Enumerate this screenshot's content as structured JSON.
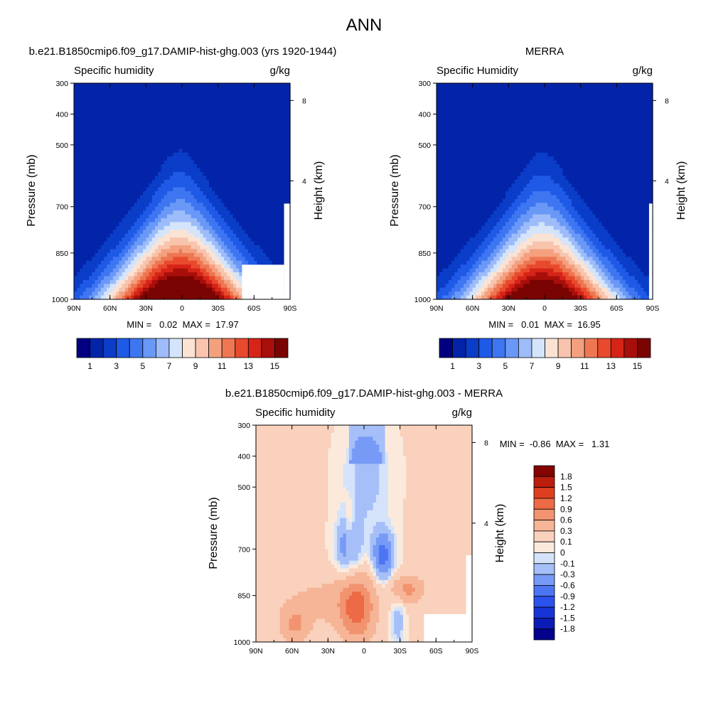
{
  "page_title": "ANN",
  "colors": {
    "seq_levels": [
      "#000080",
      "#0324a8",
      "#0a3dc8",
      "#1f5ae6",
      "#3e76f2",
      "#6a98f7",
      "#9dbcf9",
      "#d4e4fb",
      "#fbe3d4",
      "#f8c4ad",
      "#f4a07f",
      "#ee7752",
      "#e84a2d",
      "#d62418",
      "#a80f0a",
      "#7a0403"
    ],
    "diff_levels": [
      "#04028d",
      "#0b1cb5",
      "#1735d6",
      "#2b52ee",
      "#4c74f3",
      "#779af6",
      "#a6bff8",
      "#d4e3fa",
      "#fbeadc",
      "#f9d1bc",
      "#f6b596",
      "#f29370",
      "#ec6a45",
      "#de3f1f",
      "#bb1e0c",
      "#830401"
    ]
  },
  "chart_data": [
    {
      "type": "contour",
      "panel_title": "b.e21.B1850cmip6.f09_g17.DAMIP-hist-ghg.003 (yrs 1920-1944)",
      "left_label": "Specific humidity",
      "units": "g/kg",
      "ylabel": "Pressure (mb)",
      "y2label": "Height (km)",
      "x_ticks": [
        "90N",
        "60N",
        "30N",
        "0",
        "30S",
        "60S",
        "90S"
      ],
      "y_ticks": [
        300,
        400,
        500,
        700,
        850,
        1000
      ],
      "y2_ticks": [
        8,
        4
      ],
      "ylim": [
        1000,
        300
      ],
      "min_text": "MIN =   0.02  MAX =  17.97",
      "min": 0.02,
      "max": 17.97,
      "levels": [
        0,
        1,
        2,
        3,
        4,
        5,
        6,
        7,
        8,
        9,
        10,
        11,
        12,
        13,
        14,
        15,
        16
      ],
      "colorbar_labels": [
        "1",
        "3",
        "5",
        "7",
        "9",
        "11",
        "13",
        "15"
      ]
    },
    {
      "type": "contour",
      "panel_title": "MERRA",
      "left_label": "Specific Humidity",
      "units": "g/kg",
      "ylabel": "Pressure (mb)",
      "y2label": "Height (km)",
      "x_ticks": [
        "90N",
        "60N",
        "30N",
        "0",
        "30S",
        "60S",
        "90S"
      ],
      "y_ticks": [
        300,
        400,
        500,
        700,
        850,
        1000
      ],
      "y2_ticks": [
        8,
        4
      ],
      "ylim": [
        1000,
        300
      ],
      "min_text": "MIN =   0.01  MAX =  16.95",
      "min": 0.01,
      "max": 16.95,
      "levels": [
        0,
        1,
        2,
        3,
        4,
        5,
        6,
        7,
        8,
        9,
        10,
        11,
        12,
        13,
        14,
        15,
        16
      ],
      "colorbar_labels": [
        "1",
        "3",
        "5",
        "7",
        "9",
        "11",
        "13",
        "15"
      ]
    },
    {
      "type": "contour",
      "panel_title": "b.e21.B1850cmip6.f09_g17.DAMIP-hist-ghg.003 - MERRA",
      "left_label": "Specific humidity",
      "units": "g/kg",
      "ylabel": "Pressure (mb)",
      "y2label": "Height (km)",
      "x_ticks": [
        "90N",
        "60N",
        "30N",
        "0",
        "30S",
        "60S",
        "90S"
      ],
      "y_ticks": [
        300,
        400,
        500,
        700,
        850,
        1000
      ],
      "y2_ticks": [
        8,
        4
      ],
      "ylim": [
        1000,
        300
      ],
      "min_text": "MIN =  -0.86  MAX =   1.31",
      "min": -0.86,
      "max": 1.31,
      "levels": [
        -1.8,
        -1.5,
        -1.2,
        -0.9,
        -0.6,
        -0.3,
        -0.1,
        0,
        0.1,
        0.3,
        0.6,
        0.9,
        1.2,
        1.5,
        1.8
      ],
      "colorbar_labels": [
        "1.8",
        "1.5",
        "1.2",
        "0.9",
        "0.6",
        "0.3",
        "0.1",
        "0",
        "-0.1",
        "-0.3",
        "-0.6",
        "-0.9",
        "-1.2",
        "-1.5",
        "-1.8"
      ]
    }
  ]
}
